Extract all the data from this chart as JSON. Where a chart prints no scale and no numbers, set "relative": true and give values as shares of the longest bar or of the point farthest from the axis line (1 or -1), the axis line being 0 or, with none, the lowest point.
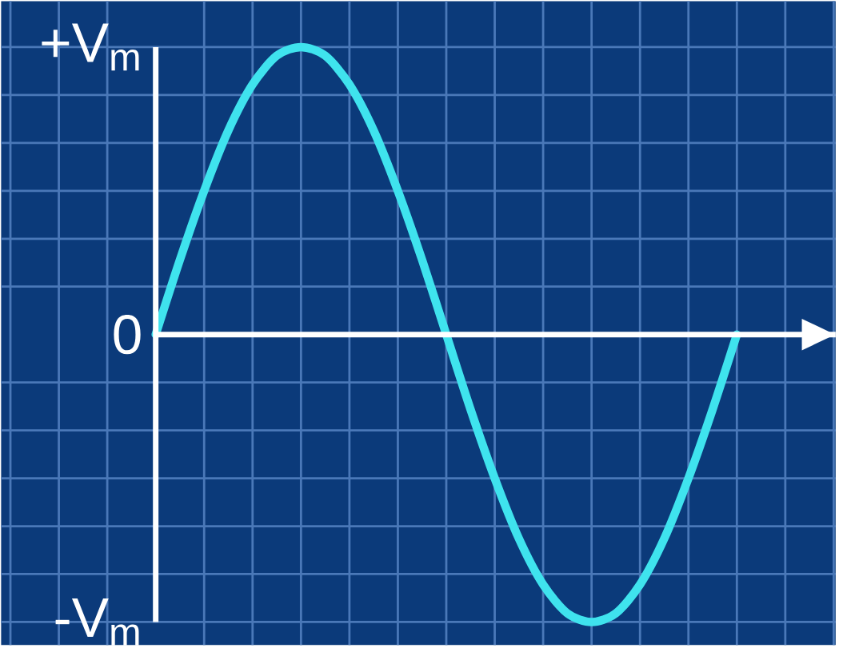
{
  "chart_data": {
    "type": "line",
    "relative": true,
    "categories": [
      null,
      null,
      null,
      null,
      null,
      null,
      null,
      null,
      null,
      null,
      null,
      null,
      null,
      null,
      null,
      null,
      null,
      null,
      null,
      null,
      null,
      null,
      null,
      null,
      null
    ],
    "series": [
      {
        "color": "#3fe3ee",
        "values": [
          0,
          0.26,
          0.5,
          0.71,
          0.87,
          0.97,
          1,
          0.97,
          0.87,
          0.71,
          0.5,
          0.26,
          0,
          -0.26,
          -0.5,
          -0.71,
          -0.87,
          -0.97,
          -1,
          -0.97,
          -0.87,
          -0.71,
          -0.5,
          -0.26,
          0
        ]
      }
    ],
    "annotations": [
      "+V$_{m}$",
      "0",
      "-V$_{m}$"
    ],
    "grid": true,
    "marker": "none",
    "line_style": "solid"
  }
}
